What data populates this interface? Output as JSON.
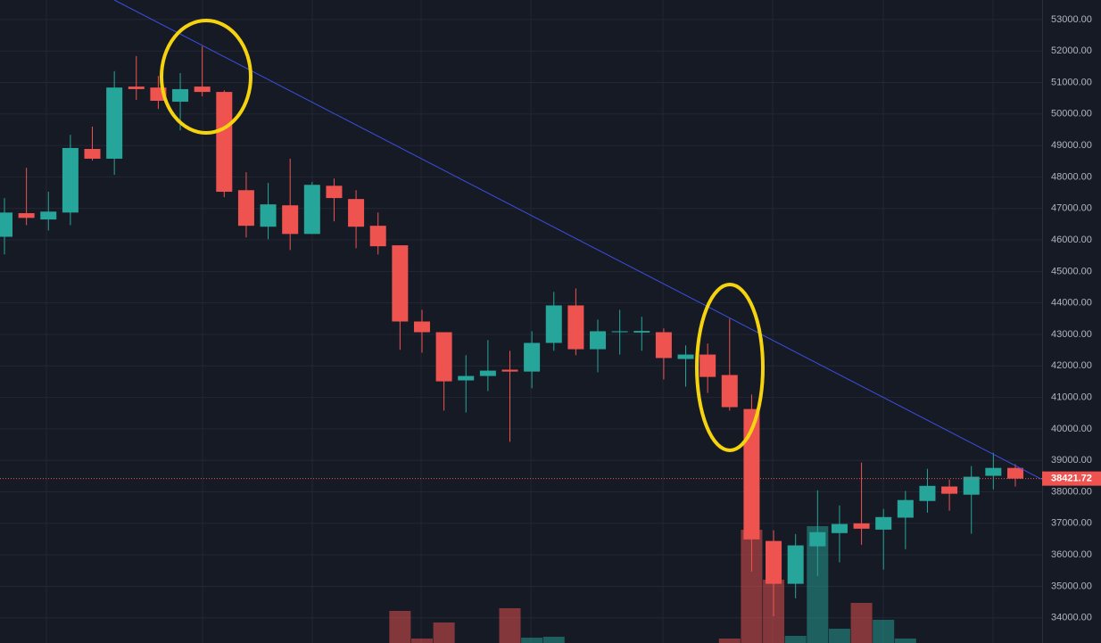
{
  "chart_data": {
    "type": "candlestick",
    "up_color": "#26a69a",
    "down_color": "#ef5350",
    "grid": true,
    "open": [
      46100,
      46850,
      46650,
      46870,
      48890,
      48580,
      50870,
      50840,
      50390,
      50870,
      50700,
      47580,
      46420,
      47100,
      46190,
      47720,
      47300,
      46450,
      45830,
      43410,
      43070,
      41540,
      41680,
      41880,
      41820,
      42730,
      43920,
      42530,
      43070,
      43060,
      43070,
      42220,
      42360,
      41710,
      40630,
      36440,
      35080,
      36270,
      36690,
      37000,
      36800,
      37180,
      37710,
      38170,
      37910,
      38510,
      38760
    ],
    "high": [
      47330,
      48290,
      47530,
      49340,
      49600,
      51360,
      51840,
      51210,
      51300,
      52150,
      50750,
      48150,
      47810,
      48580,
      47840,
      47950,
      47580,
      46870,
      45830,
      43780,
      43070,
      42340,
      42820,
      42480,
      43100,
      44350,
      44460,
      43470,
      43780,
      43560,
      43190,
      42650,
      42710,
      43500,
      41090,
      36780,
      36660,
      38050,
      37570,
      38930,
      37460,
      38030,
      38730,
      38390,
      38820,
      39240,
      38880
    ],
    "low": [
      45540,
      46470,
      46300,
      46470,
      48520,
      48070,
      50450,
      50160,
      49480,
      50560,
      47360,
      46080,
      46020,
      45680,
      46190,
      46590,
      45740,
      45540,
      42510,
      42420,
      40580,
      40520,
      41200,
      39590,
      41290,
      42480,
      42340,
      41800,
      42360,
      42480,
      41570,
      41340,
      41140,
      40580,
      35470,
      34050,
      34620,
      35330,
      35760,
      36320,
      35530,
      36180,
      37340,
      37400,
      36670,
      38080,
      38170
    ],
    "close": [
      46870,
      46700,
      46900,
      48920,
      48580,
      50840,
      50790,
      50420,
      50790,
      50700,
      47530,
      46450,
      47130,
      46190,
      47750,
      47330,
      46420,
      45800,
      43410,
      43070,
      41510,
      41680,
      41850,
      41820,
      42730,
      43920,
      42530,
      43100,
      43100,
      43110,
      42250,
      42360,
      41650,
      40690,
      36490,
      35080,
      36300,
      36720,
      36980,
      36830,
      37200,
      37740,
      38190,
      37940,
      38480,
      38760,
      38420
    ],
    "volume": [
      null,
      null,
      null,
      null,
      null,
      null,
      null,
      null,
      null,
      null,
      null,
      null,
      null,
      null,
      null,
      null,
      null,
      null,
      36,
      5,
      23,
      null,
      null,
      39,
      6,
      7,
      null,
      null,
      null,
      null,
      null,
      null,
      null,
      5,
      127,
      71,
      8,
      131,
      16,
      45,
      26,
      5,
      null,
      null,
      null,
      null,
      null
    ],
    "volume_ylim": [
      0,
      150
    ],
    "ylim": [
      33200,
      53620
    ],
    "yticks": [
      {
        "value": 34000,
        "label": "34000.00"
      },
      {
        "value": 35000,
        "label": "35000.00"
      },
      {
        "value": 36000,
        "label": "36000.00"
      },
      {
        "value": 37000,
        "label": "37000.00"
      },
      {
        "value": 38000,
        "label": "38000.00"
      },
      {
        "value": 39000,
        "label": "39000.00"
      },
      {
        "value": 40000,
        "label": "40000.00"
      },
      {
        "value": 41000,
        "label": "41000.00"
      },
      {
        "value": 42000,
        "label": "42000.00"
      },
      {
        "value": 43000,
        "label": "43000.00"
      },
      {
        "value": 44000,
        "label": "44000.00"
      },
      {
        "value": 45000,
        "label": "45000.00"
      },
      {
        "value": 46000,
        "label": "46000.00"
      },
      {
        "value": 47000,
        "label": "47000.00"
      },
      {
        "value": 48000,
        "label": "48000.00"
      },
      {
        "value": 49000,
        "label": "49000.00"
      },
      {
        "value": 50000,
        "label": "50000.00"
      },
      {
        "value": 51000,
        "label": "51000.00"
      },
      {
        "value": 52000,
        "label": "52000.00"
      },
      {
        "value": 53000,
        "label": "53000.00"
      }
    ],
    "last_price": 38421.72,
    "trendline": {
      "color": "#3b4fe0",
      "points": [
        [
          5,
          53620
        ],
        [
          47.2,
          38400
        ]
      ]
    }
  }
}
